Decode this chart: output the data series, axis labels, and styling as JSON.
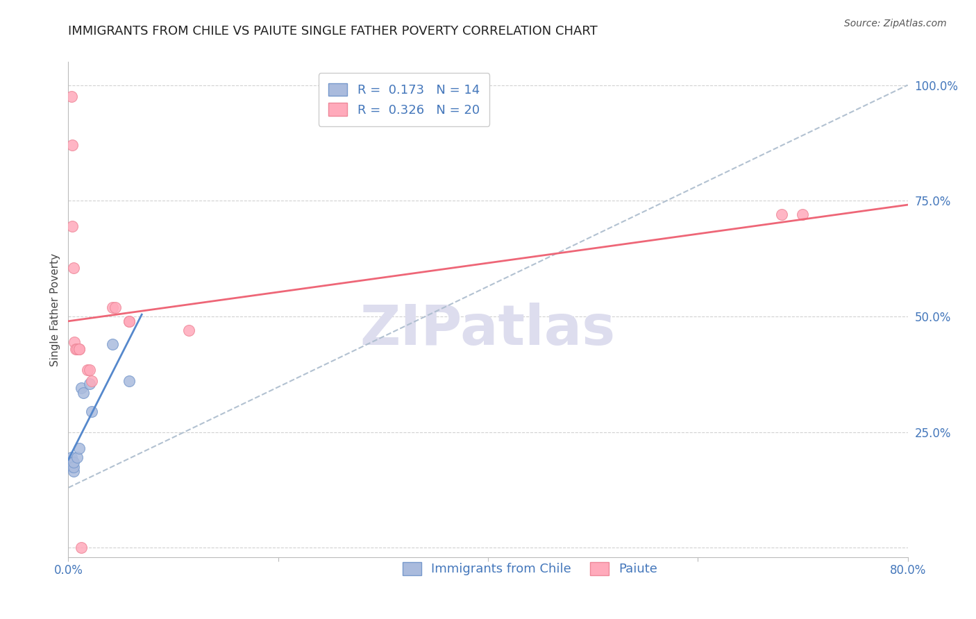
{
  "title": "IMMIGRANTS FROM CHILE VS PAIUTE SINGLE FATHER POVERTY CORRELATION CHART",
  "source": "Source: ZipAtlas.com",
  "ylabel": "Single Father Poverty",
  "xlim": [
    0.0,
    0.8
  ],
  "ylim": [
    0.0,
    1.05
  ],
  "x_tick_positions": [
    0.0,
    0.2,
    0.4,
    0.6,
    0.8
  ],
  "x_tick_labels": [
    "0.0%",
    "",
    "",
    "",
    "80.0%"
  ],
  "y_tick_positions": [
    0.0,
    0.25,
    0.5,
    0.75,
    1.0
  ],
  "y_tick_labels": [
    "",
    "25.0%",
    "50.0%",
    "75.0%",
    "100.0%"
  ],
  "R_chile": 0.173,
  "N_chile": 14,
  "R_paiute": 0.326,
  "N_paiute": 20,
  "chile_scatter_color": "#aabbdd",
  "chile_scatter_edge": "#7799cc",
  "paiute_scatter_color": "#ffaabb",
  "paiute_scatter_edge": "#ee8899",
  "chile_line_color": "#5588cc",
  "paiute_line_color": "#ee6677",
  "dash_line_color": "#aabbcc",
  "legend_label_chile": "Immigrants from Chile",
  "legend_label_paiute": "Paiute",
  "chile_x": [
    0.003,
    0.004,
    0.004,
    0.005,
    0.005,
    0.005,
    0.008,
    0.01,
    0.012,
    0.014,
    0.02,
    0.022,
    0.042,
    0.058
  ],
  "chile_y": [
    0.195,
    0.185,
    0.175,
    0.165,
    0.175,
    0.185,
    0.195,
    0.215,
    0.345,
    0.335,
    0.355,
    0.295,
    0.44,
    0.36
  ],
  "paiute_x": [
    0.003,
    0.004,
    0.004,
    0.005,
    0.006,
    0.007,
    0.008,
    0.01,
    0.01,
    0.018,
    0.02,
    0.022,
    0.042,
    0.045,
    0.058,
    0.058,
    0.115,
    0.68,
    0.7,
    0.012
  ],
  "paiute_y": [
    0.975,
    0.87,
    0.695,
    0.605,
    0.445,
    0.43,
    0.43,
    0.43,
    0.43,
    0.385,
    0.385,
    0.36,
    0.52,
    0.52,
    0.49,
    0.49,
    0.47,
    0.72,
    0.72,
    0.0
  ],
  "watermark_text": "ZIPatlas",
  "watermark_color": "#ddddee",
  "background_color": "#ffffff",
  "grid_color": "#cccccc",
  "title_fontsize": 13,
  "axis_label_fontsize": 11,
  "tick_fontsize": 12,
  "legend_fontsize": 13
}
